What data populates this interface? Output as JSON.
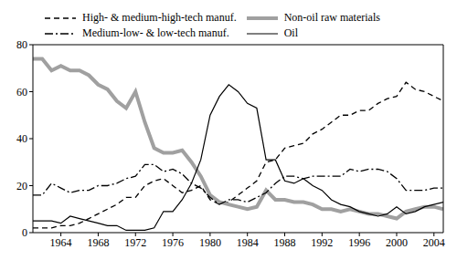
{
  "chart_data": {
    "type": "line",
    "x": [
      1961,
      1962,
      1963,
      1964,
      1965,
      1966,
      1967,
      1968,
      1969,
      1970,
      1971,
      1972,
      1973,
      1974,
      1975,
      1976,
      1977,
      1978,
      1979,
      1980,
      1981,
      1982,
      1983,
      1984,
      1985,
      1986,
      1987,
      1988,
      1989,
      1990,
      1991,
      1992,
      1993,
      1994,
      1995,
      1996,
      1997,
      1998,
      1999,
      2000,
      2001,
      2002,
      2003,
      2004,
      2005
    ],
    "xlim": [
      1961,
      2005
    ],
    "xticks": [
      1964,
      1968,
      1972,
      1976,
      1980,
      1984,
      1988,
      1992,
      1996,
      2000,
      2004
    ],
    "ylim": [
      0,
      80
    ],
    "yticks": [
      0,
      20,
      40,
      60,
      80
    ],
    "grid": false,
    "legend": "top",
    "series": [
      {
        "name": "High- & medium-high-tech manuf.",
        "color": "#000000",
        "line_style": "dashed",
        "values": [
          2,
          2,
          2,
          3,
          3,
          4,
          6,
          8,
          10,
          12,
          15,
          15,
          20,
          22,
          23,
          20,
          17,
          18,
          20,
          14,
          12,
          13,
          16,
          19,
          22,
          30,
          31,
          36,
          37,
          38,
          42,
          44,
          47,
          50,
          50,
          52,
          52,
          55,
          57,
          58,
          64,
          61,
          60,
          58,
          56
        ]
      },
      {
        "name": "Non-oil raw materials",
        "color": "#a0a0a0",
        "line_style": "solid",
        "values": [
          74,
          74,
          69,
          71,
          69,
          69,
          67,
          63,
          61,
          56,
          53,
          60,
          47,
          36,
          34,
          34,
          35,
          30,
          24,
          16,
          13,
          12,
          11,
          10,
          11,
          18,
          14,
          14,
          13,
          13,
          12,
          10,
          10,
          9,
          10,
          9,
          8,
          8,
          7,
          6,
          9,
          10,
          11,
          11,
          10
        ]
      },
      {
        "name": "Medium-low- & low-tech manuf.",
        "color": "#000000",
        "line_style": "dashdot",
        "values": [
          16,
          16,
          21,
          19,
          17,
          18,
          18,
          20,
          20,
          21,
          23,
          24,
          29,
          29,
          26,
          27,
          25,
          21,
          19,
          15,
          12,
          14,
          14,
          13,
          15,
          17,
          21,
          24,
          24,
          23,
          24,
          24,
          24,
          24,
          27,
          26,
          27,
          27,
          26,
          23,
          18,
          18,
          18,
          19,
          19
        ]
      },
      {
        "name": "Oil",
        "color": "#000000",
        "line_style": "solid",
        "values": [
          5,
          5,
          5,
          4,
          7,
          6,
          5,
          4,
          3,
          3,
          1,
          1,
          1,
          2,
          9,
          9,
          14,
          21,
          31,
          50,
          58,
          63,
          60,
          55,
          53,
          31,
          31,
          22,
          21,
          23,
          20,
          18,
          14,
          12,
          11,
          9,
          8,
          7,
          8,
          11,
          8,
          9,
          11,
          12,
          13
        ]
      }
    ]
  }
}
